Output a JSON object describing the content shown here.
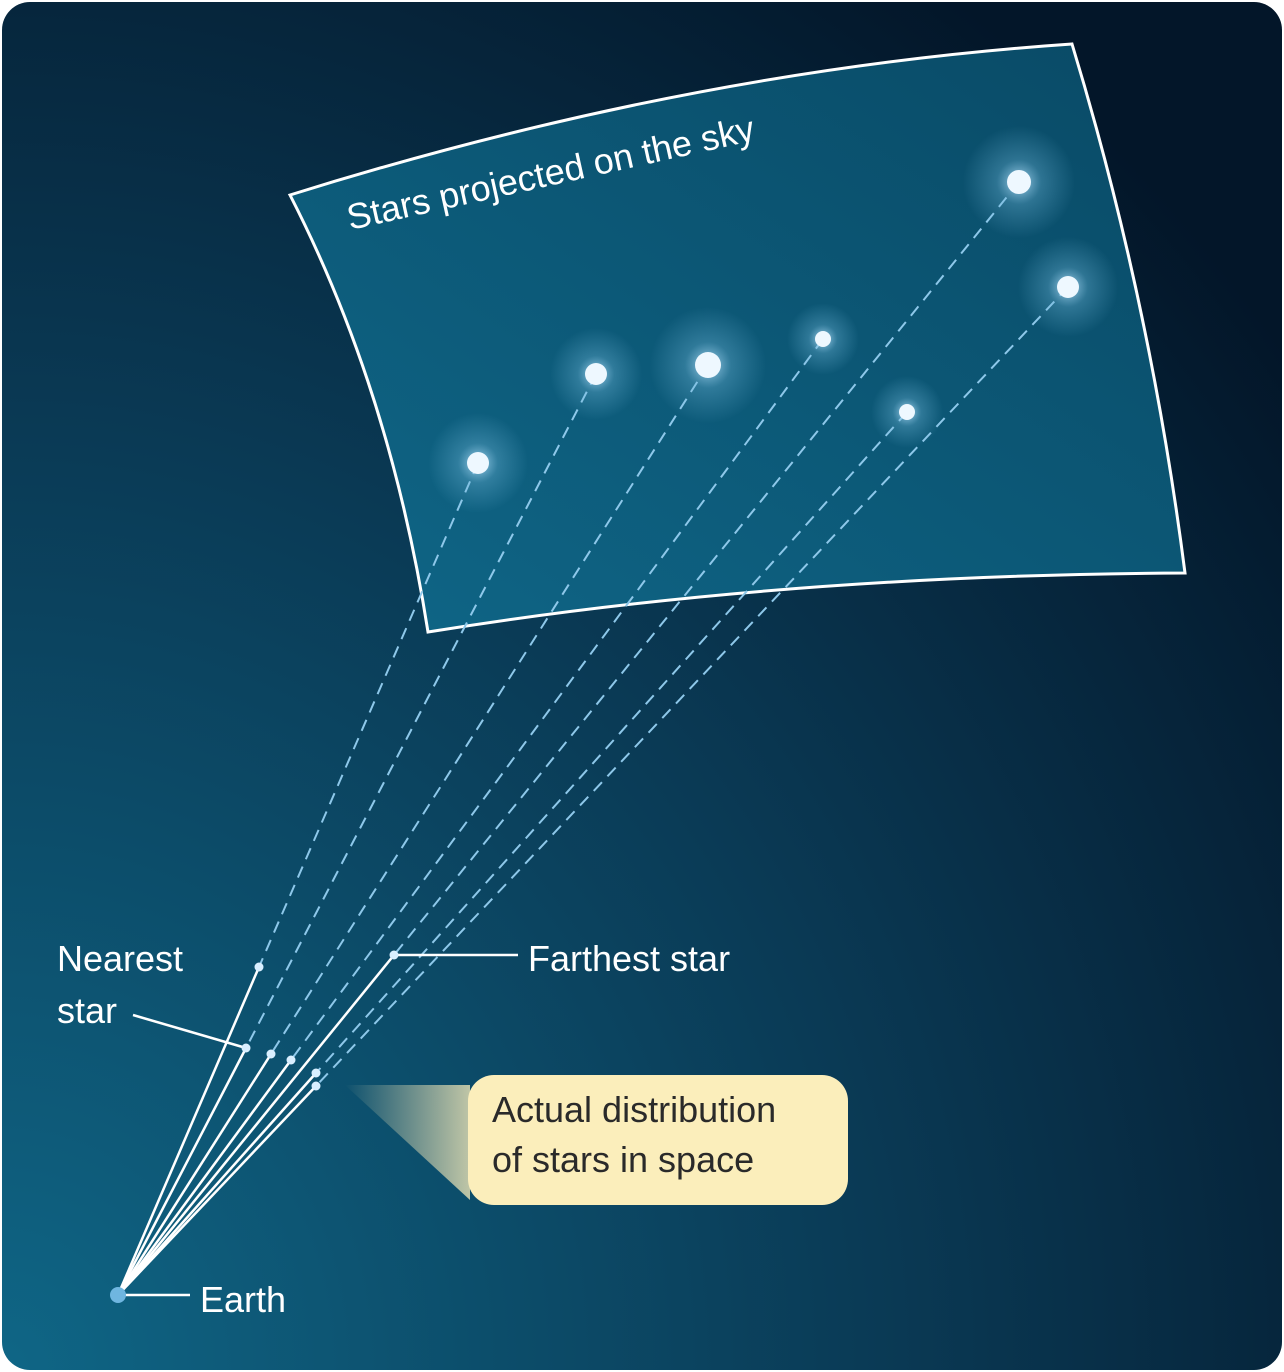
{
  "sky_panel": {
    "label": "Stars projected on the sky"
  },
  "labels": {
    "nearest_star": [
      "Nearest",
      "star"
    ],
    "farthest_star": "Farthest star",
    "earth": "Earth",
    "callout": [
      "Actual distribution",
      "of stars in space"
    ]
  }
}
